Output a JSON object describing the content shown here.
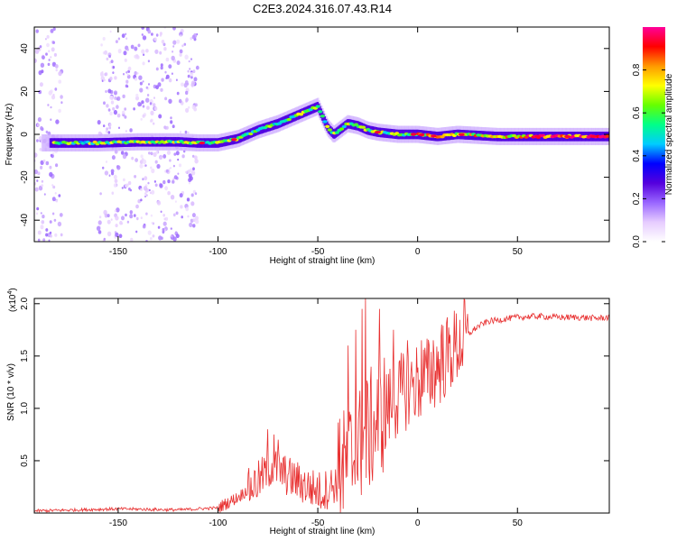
{
  "figure": {
    "title": "C2E3.2024.316.07.43.R14"
  },
  "chart_data": [
    {
      "type": "heatmap",
      "title": "C2E3.2024.316.07.43.R14",
      "xlabel": "Height of straight line (km)",
      "ylabel": "Frequency (Hz)",
      "xlim": [
        -192,
        96
      ],
      "ylim": [
        -50,
        50
      ],
      "xticks": [
        -150,
        -100,
        -50,
        0,
        50
      ],
      "yticks": [
        -40,
        -20,
        0,
        20,
        40
      ],
      "colorbar": {
        "label": "Normalized spectral amplitude",
        "range": [
          0,
          1
        ],
        "ticks": [
          0.0,
          0.2,
          0.4,
          0.6,
          0.8
        ],
        "tick_labels": [
          "0.0",
          "0.2",
          "0.4",
          "0.6",
          "0.8"
        ],
        "colormap": [
          "#ffffff",
          "#e6ccff",
          "#9966ff",
          "#5500dd",
          "#0000ff",
          "#00ccff",
          "#00ff88",
          "#66ff00",
          "#ffff00",
          "#ff9900",
          "#ff0000",
          "#ff0099"
        ]
      },
      "ridge": {
        "x": [
          -182,
          -160,
          -140,
          -120,
          -110,
          -100,
          -90,
          -80,
          -70,
          -60,
          -55,
          -50,
          -45,
          -42,
          -35,
          -30,
          -25,
          -20,
          -10,
          0,
          10,
          20,
          40,
          60,
          80,
          95
        ],
        "y": [
          -4,
          -4,
          -3.5,
          -3.5,
          -4,
          -4,
          -2,
          2,
          5,
          9,
          11,
          13,
          3,
          0,
          5,
          4,
          2,
          1,
          0,
          0,
          -1,
          0,
          -1,
          -1,
          -1,
          -1
        ]
      },
      "noise_bands": [
        [
          -192,
          -178
        ],
        [
          -160,
          -110
        ]
      ]
    },
    {
      "type": "line",
      "xlabel": "Height of straight line (km)",
      "ylabel": "SNR (10 * v/v)",
      "y_multiplier": "(x10",
      "y_multiplier_exp": "4",
      "y_multiplier_close": ")",
      "xlim": [
        -192,
        96
      ],
      "ylim": [
        0,
        2.05
      ],
      "xticks": [
        -150,
        -100,
        -50,
        0,
        50
      ],
      "yticks": [
        0.5,
        1.0,
        1.5,
        2.0
      ],
      "ytick_labels": [
        "0.5",
        "1.0",
        "1.5",
        "2.0"
      ],
      "line_color": "#e83030",
      "trend": {
        "x": [
          -192,
          -150,
          -120,
          -100,
          -90,
          -80,
          -73,
          -65,
          -55,
          -48,
          -40,
          -35,
          -30,
          -25,
          -20,
          -15,
          -10,
          -5,
          0,
          5,
          10,
          15,
          20,
          25,
          30,
          35,
          50,
          60,
          70,
          80,
          90,
          96
        ],
        "y": [
          0.02,
          0.04,
          0.03,
          0.05,
          0.15,
          0.3,
          0.45,
          0.35,
          0.25,
          0.2,
          0.3,
          0.5,
          0.6,
          0.75,
          0.9,
          1.0,
          1.1,
          1.2,
          1.25,
          1.3,
          1.4,
          1.5,
          1.6,
          1.7,
          1.78,
          1.83,
          1.87,
          1.88,
          1.87,
          1.87,
          1.86,
          1.87
        ]
      },
      "peaks": {
        "x": [
          -75,
          -72,
          -70,
          -39,
          -35,
          -31,
          -28,
          -26,
          -19,
          -12,
          -5,
          2,
          8,
          12
        ],
        "y": [
          0.8,
          0.75,
          0.7,
          0.9,
          1.6,
          1.75,
          1.95,
          2.05,
          1.95,
          1.75,
          1.65,
          1.65,
          1.65,
          1.8
        ]
      }
    }
  ]
}
